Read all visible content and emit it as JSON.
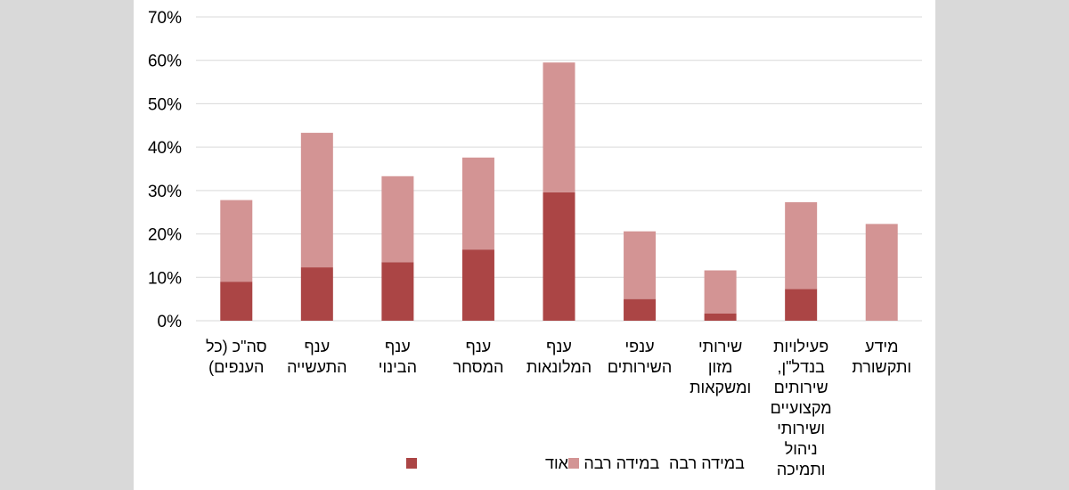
{
  "chart_data": {
    "type": "bar",
    "stacked": true,
    "categories": [
      [
        "סה\"כ (כל",
        "הענפים)"
      ],
      [
        "ענף",
        "התעשייה"
      ],
      [
        "ענף",
        "הבינוי"
      ],
      [
        "ענף",
        "המסחר"
      ],
      [
        "ענף",
        "המלונאות"
      ],
      [
        "ענפי",
        "השירותים"
      ],
      [
        "שירותי",
        "מזון",
        "ומשקאות"
      ],
      [
        "פעילויות",
        "בנדל\"ן,",
        "שירותים",
        "מקצועיים",
        "ושירותי",
        "ניהול",
        "ותמיכה"
      ],
      [
        "מידע",
        "ותקשורת"
      ]
    ],
    "series": [
      {
        "name": "במידה רבה מאוד",
        "color": "#ab4545",
        "values": [
          9.0,
          12.3,
          13.5,
          16.4,
          29.6,
          5.0,
          1.7,
          7.3,
          0
        ]
      },
      {
        "name": "במידה רבה",
        "color": "#d39494",
        "values": [
          18.8,
          31.0,
          19.8,
          21.2,
          29.9,
          15.6,
          9.9,
          20.0,
          22.3
        ]
      }
    ],
    "yticks": [
      "0%",
      "10%",
      "20%",
      "30%",
      "40%",
      "50%",
      "60%",
      "70%"
    ],
    "ylim": [
      0,
      70
    ],
    "grid": true,
    "legend_position": "bottom"
  }
}
